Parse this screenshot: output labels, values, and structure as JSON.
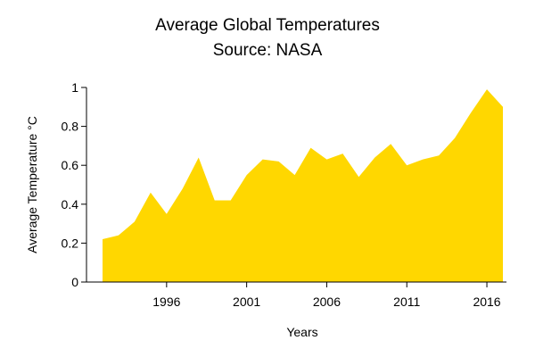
{
  "chart_data": {
    "type": "area",
    "title": "Average Global Temperatures",
    "subtitle": "Source: NASA",
    "xlabel": "Years",
    "ylabel": "Average Temperature °C",
    "x": [
      1992,
      1993,
      1994,
      1995,
      1996,
      1997,
      1998,
      1999,
      2000,
      2001,
      2002,
      2003,
      2004,
      2005,
      2006,
      2007,
      2008,
      2009,
      2010,
      2011,
      2012,
      2013,
      2014,
      2015,
      2016,
      2017
    ],
    "series": [
      {
        "values": [
          0.22,
          0.24,
          0.31,
          0.46,
          0.35,
          0.48,
          0.64,
          0.42,
          0.42,
          0.55,
          0.63,
          0.62,
          0.55,
          0.69,
          0.63,
          0.66,
          0.54,
          0.64,
          0.71,
          0.6,
          0.63,
          0.65,
          0.74,
          0.87,
          0.99,
          0.9
        ],
        "color": "#FFD700"
      }
    ],
    "xticks": [
      1996,
      2001,
      2006,
      2011,
      2016
    ],
    "xtick_labels": [
      "1996",
      "2001",
      "2006",
      "2011",
      "2016"
    ],
    "yticks": [
      0,
      0.2,
      0.4,
      0.6,
      0.8,
      1
    ],
    "ytick_labels": [
      "0",
      "0.2",
      "0.4",
      "0.6",
      "0.8",
      "1"
    ],
    "xlim": [
      1992,
      2017
    ],
    "ylim": [
      0,
      1
    ],
    "grid": false,
    "legend": "none"
  }
}
